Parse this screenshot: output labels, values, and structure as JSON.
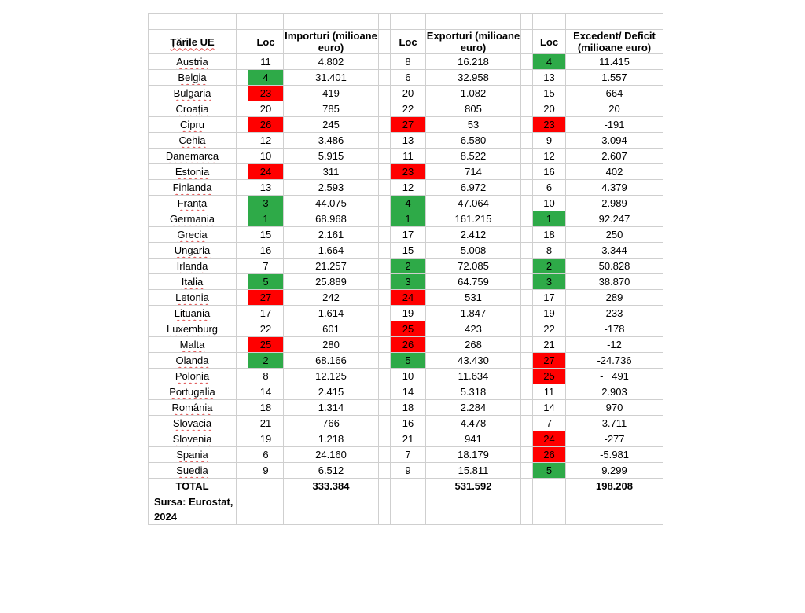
{
  "headers": {
    "country": "Țările UE",
    "loc1": "Loc",
    "imports": "Importuri (milioane euro)",
    "loc2": "Loc",
    "exports": "Exporturi (milioane euro)",
    "loc3": "Loc",
    "balance": "Excedent/ Deficit (milioane euro)"
  },
  "colors": {
    "red": "#ff0000",
    "green": "#2eaa48"
  },
  "rows": [
    {
      "country": "Austria",
      "loc_imp": "11",
      "imp": "4.802",
      "loc_exp": "8",
      "exp": "16.218",
      "loc_bal": "4",
      "bal": "11.415",
      "imp_hl": "",
      "exp_hl": "",
      "bal_hl": "green"
    },
    {
      "country": "Belgia",
      "loc_imp": "4",
      "imp": "31.401",
      "loc_exp": "6",
      "exp": "32.958",
      "loc_bal": "13",
      "bal": "1.557",
      "imp_hl": "green",
      "exp_hl": "",
      "bal_hl": ""
    },
    {
      "country": "Bulgaria",
      "loc_imp": "23",
      "imp": "419",
      "loc_exp": "20",
      "exp": "1.082",
      "loc_bal": "15",
      "bal": "664",
      "imp_hl": "red",
      "exp_hl": "",
      "bal_hl": ""
    },
    {
      "country": "Croația",
      "loc_imp": "20",
      "imp": "785",
      "loc_exp": "22",
      "exp": "805",
      "loc_bal": "20",
      "bal": "20",
      "imp_hl": "",
      "exp_hl": "",
      "bal_hl": ""
    },
    {
      "country": "Cipru",
      "loc_imp": "26",
      "imp": "245",
      "loc_exp": "27",
      "exp": "53",
      "loc_bal": "23",
      "bal": "-191",
      "imp_hl": "red",
      "exp_hl": "red",
      "bal_hl": "red"
    },
    {
      "country": "Cehia",
      "loc_imp": "12",
      "imp": "3.486",
      "loc_exp": "13",
      "exp": "6.580",
      "loc_bal": "9",
      "bal": "3.094",
      "imp_hl": "",
      "exp_hl": "",
      "bal_hl": ""
    },
    {
      "country": "Danemarca",
      "loc_imp": "10",
      "imp": "5.915",
      "loc_exp": "11",
      "exp": "8.522",
      "loc_bal": "12",
      "bal": "2.607",
      "imp_hl": "",
      "exp_hl": "",
      "bal_hl": ""
    },
    {
      "country": "Estonia",
      "loc_imp": "24",
      "imp": "311",
      "loc_exp": "23",
      "exp": "714",
      "loc_bal": "16",
      "bal": "402",
      "imp_hl": "red",
      "exp_hl": "red",
      "bal_hl": ""
    },
    {
      "country": "Finlanda",
      "loc_imp": "13",
      "imp": "2.593",
      "loc_exp": "12",
      "exp": "6.972",
      "loc_bal": "6",
      "bal": "4.379",
      "imp_hl": "",
      "exp_hl": "",
      "bal_hl": ""
    },
    {
      "country": "Franța",
      "loc_imp": "3",
      "imp": "44.075",
      "loc_exp": "4",
      "exp": "47.064",
      "loc_bal": "10",
      "bal": "2.989",
      "imp_hl": "green",
      "exp_hl": "green",
      "bal_hl": ""
    },
    {
      "country": "Germania",
      "loc_imp": "1",
      "imp": "68.968",
      "loc_exp": "1",
      "exp": "161.215",
      "loc_bal": "1",
      "bal": "92.247",
      "imp_hl": "green",
      "exp_hl": "green",
      "bal_hl": "green"
    },
    {
      "country": "Grecia",
      "loc_imp": "15",
      "imp": "2.161",
      "loc_exp": "17",
      "exp": "2.412",
      "loc_bal": "18",
      "bal": "250",
      "imp_hl": "",
      "exp_hl": "",
      "bal_hl": ""
    },
    {
      "country": "Ungaria",
      "loc_imp": "16",
      "imp": "1.664",
      "loc_exp": "15",
      "exp": "5.008",
      "loc_bal": "8",
      "bal": "3.344",
      "imp_hl": "",
      "exp_hl": "",
      "bal_hl": ""
    },
    {
      "country": "Irlanda",
      "loc_imp": "7",
      "imp": "21.257",
      "loc_exp": "2",
      "exp": "72.085",
      "loc_bal": "2",
      "bal": "50.828",
      "imp_hl": "",
      "exp_hl": "green",
      "bal_hl": "green"
    },
    {
      "country": "Italia",
      "loc_imp": "5",
      "imp": "25.889",
      "loc_exp": "3",
      "exp": "64.759",
      "loc_bal": "3",
      "bal": "38.870",
      "imp_hl": "green",
      "exp_hl": "green",
      "bal_hl": "green"
    },
    {
      "country": "Letonia",
      "loc_imp": "27",
      "imp": "242",
      "loc_exp": "24",
      "exp": "531",
      "loc_bal": "17",
      "bal": "289",
      "imp_hl": "red",
      "exp_hl": "red",
      "bal_hl": ""
    },
    {
      "country": "Lituania",
      "loc_imp": "17",
      "imp": "1.614",
      "loc_exp": "19",
      "exp": "1.847",
      "loc_bal": "19",
      "bal": "233",
      "imp_hl": "",
      "exp_hl": "",
      "bal_hl": ""
    },
    {
      "country": "Luxemburg",
      "loc_imp": "22",
      "imp": "601",
      "loc_exp": "25",
      "exp": "423",
      "loc_bal": "22",
      "bal": "-178",
      "imp_hl": "",
      "exp_hl": "red",
      "bal_hl": ""
    },
    {
      "country": "Malta",
      "loc_imp": "25",
      "imp": "280",
      "loc_exp": "26",
      "exp": "268",
      "loc_bal": "21",
      "bal": "-12",
      "imp_hl": "red",
      "exp_hl": "red",
      "bal_hl": ""
    },
    {
      "country": "Olanda",
      "loc_imp": "2",
      "imp": "68.166",
      "loc_exp": "5",
      "exp": "43.430",
      "loc_bal": "27",
      "bal": "-24.736",
      "imp_hl": "green",
      "exp_hl": "green",
      "bal_hl": "red"
    },
    {
      "country": "Polonia",
      "loc_imp": "8",
      "imp": "12.125",
      "loc_exp": "10",
      "exp": "11.634",
      "loc_bal": "25",
      "bal": "-   491",
      "imp_hl": "",
      "exp_hl": "",
      "bal_hl": "red"
    },
    {
      "country": "Portugalia",
      "loc_imp": "14",
      "imp": "2.415",
      "loc_exp": "14",
      "exp": "5.318",
      "loc_bal": "11",
      "bal": "2.903",
      "imp_hl": "",
      "exp_hl": "",
      "bal_hl": ""
    },
    {
      "country": "România",
      "loc_imp": "18",
      "imp": "1.314",
      "loc_exp": "18",
      "exp": "2.284",
      "loc_bal": "14",
      "bal": "970",
      "imp_hl": "",
      "exp_hl": "",
      "bal_hl": ""
    },
    {
      "country": "Slovacia",
      "loc_imp": "21",
      "imp": "766",
      "loc_exp": "16",
      "exp": "4.478",
      "loc_bal": "7",
      "bal": "3.711",
      "imp_hl": "",
      "exp_hl": "",
      "bal_hl": ""
    },
    {
      "country": "Slovenia",
      "loc_imp": "19",
      "imp": "1.218",
      "loc_exp": "21",
      "exp": "941",
      "loc_bal": "24",
      "bal": "-277",
      "imp_hl": "",
      "exp_hl": "",
      "bal_hl": "red"
    },
    {
      "country": "Spania",
      "loc_imp": "6",
      "imp": "24.160",
      "loc_exp": "7",
      "exp": "18.179",
      "loc_bal": "26",
      "bal": "-5.981",
      "imp_hl": "",
      "exp_hl": "",
      "bal_hl": "red"
    },
    {
      "country": "Suedia",
      "loc_imp": "9",
      "imp": "6.512",
      "loc_exp": "9",
      "exp": "15.811",
      "loc_bal": "5",
      "bal": "9.299",
      "imp_hl": "",
      "exp_hl": "",
      "bal_hl": "green"
    }
  ],
  "total": {
    "label": "TOTAL",
    "imp": "333.384",
    "exp": "531.592",
    "bal": "198.208"
  },
  "source": "Sursa: Eurostat, 2024"
}
